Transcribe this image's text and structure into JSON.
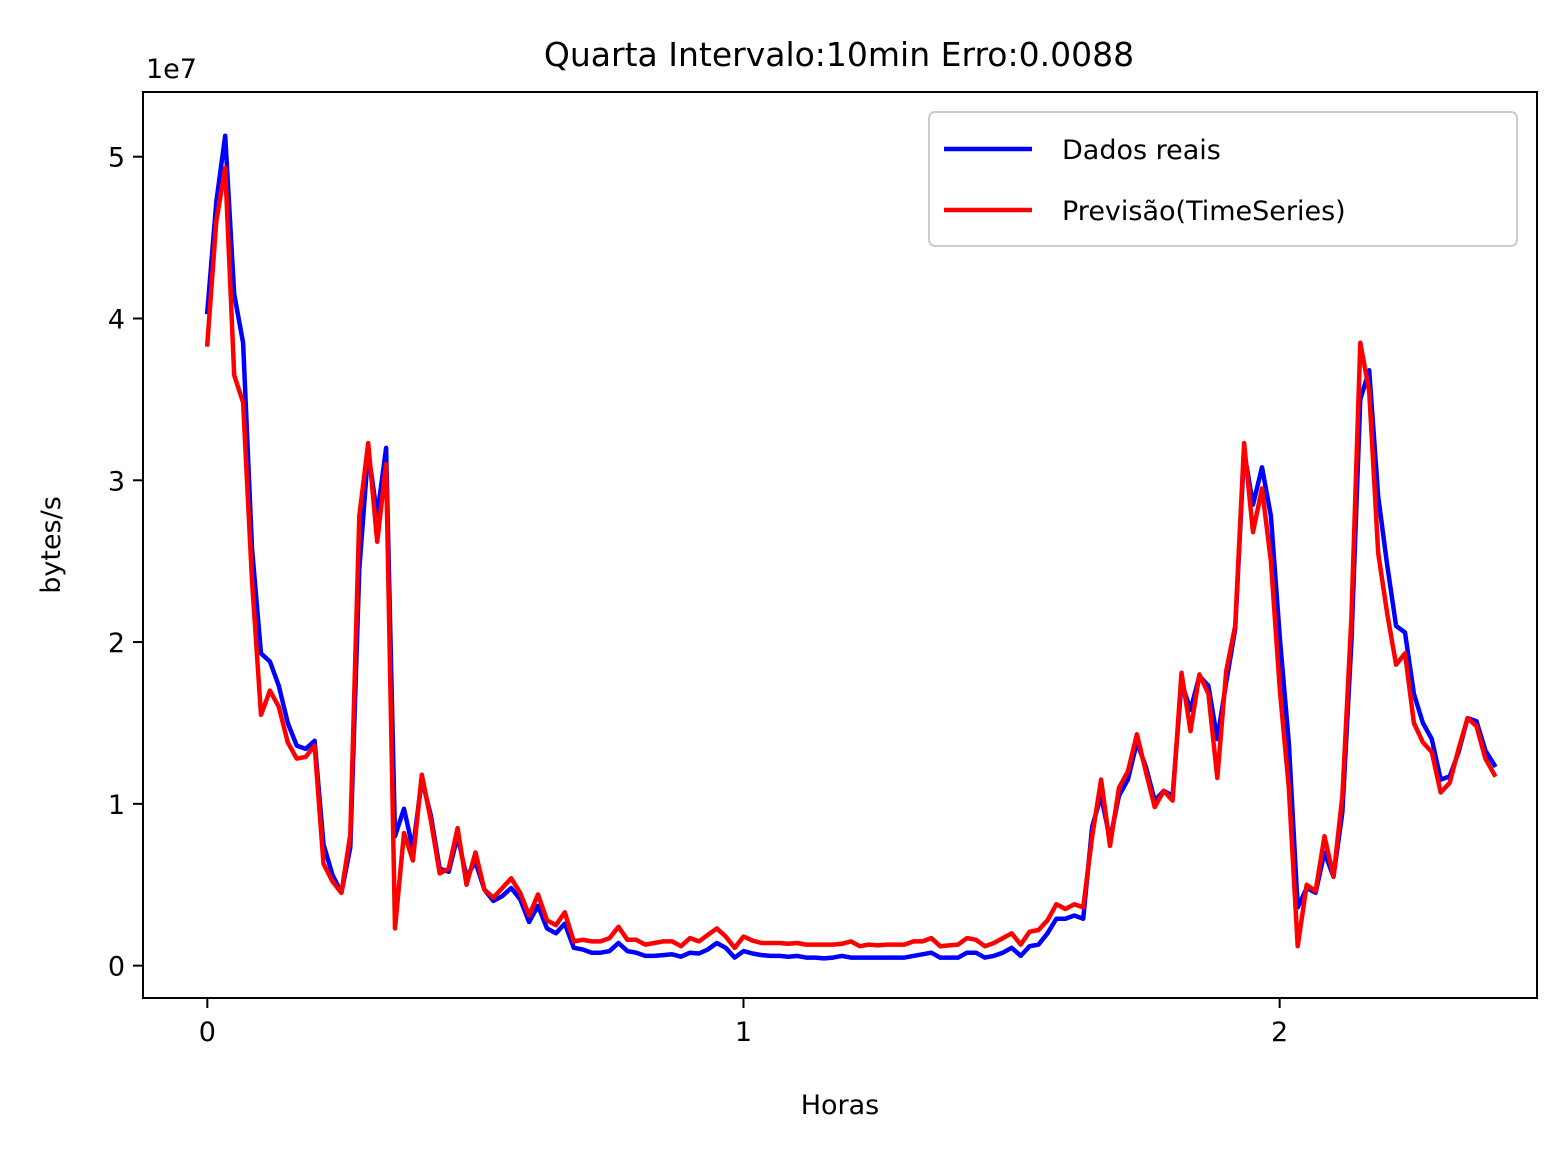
{
  "chart_data": {
    "type": "line",
    "title": "Quarta Intervalo:10min Erro:0.0088",
    "xlabel": "Horas",
    "ylabel": "bytes/s",
    "y_scale_label": "1e7",
    "xlim": [
      -0.12,
      2.48
    ],
    "ylim": [
      -0.2,
      5.4
    ],
    "x_ticks": [
      0,
      1,
      2
    ],
    "x_tick_labels": [
      "0",
      "1",
      "2"
    ],
    "y_ticks": [
      0,
      1,
      2,
      3,
      4,
      5
    ],
    "y_tick_labels": [
      "0",
      "1",
      "2",
      "3",
      "4",
      "5"
    ],
    "grid": false,
    "legend": "top-right",
    "x_step": 0.01667,
    "series": [
      {
        "name": "Dados reais",
        "color": "#0000ff",
        "values": [
          4.04,
          4.72,
          5.13,
          4.15,
          3.85,
          2.58,
          1.93,
          1.88,
          1.73,
          1.5,
          1.36,
          1.34,
          1.39,
          0.75,
          0.56,
          0.45,
          0.73,
          2.45,
          3.18,
          2.78,
          3.2,
          0.8,
          0.97,
          0.72,
          1.15,
          0.93,
          0.6,
          0.58,
          0.8,
          0.55,
          0.64,
          0.47,
          0.4,
          0.43,
          0.48,
          0.41,
          0.27,
          0.37,
          0.23,
          0.2,
          0.26,
          0.11,
          0.1,
          0.08,
          0.08,
          0.09,
          0.14,
          0.09,
          0.08,
          0.06,
          0.06,
          0.065,
          0.07,
          0.055,
          0.08,
          0.075,
          0.1,
          0.14,
          0.11,
          0.05,
          0.09,
          0.075,
          0.065,
          0.06,
          0.06,
          0.055,
          0.06,
          0.05,
          0.05,
          0.045,
          0.05,
          0.06,
          0.05,
          0.05,
          0.05,
          0.05,
          0.05,
          0.05,
          0.05,
          0.06,
          0.07,
          0.08,
          0.05,
          0.05,
          0.05,
          0.08,
          0.08,
          0.05,
          0.06,
          0.08,
          0.11,
          0.06,
          0.12,
          0.13,
          0.2,
          0.29,
          0.29,
          0.31,
          0.29,
          0.86,
          1.05,
          0.78,
          1.05,
          1.15,
          1.38,
          1.23,
          1.02,
          1.08,
          1.05,
          1.75,
          1.58,
          1.79,
          1.73,
          1.4,
          1.75,
          2.08,
          3.18,
          2.85,
          3.08,
          2.78,
          2.02,
          1.38,
          0.36,
          0.48,
          0.45,
          0.7,
          0.55,
          0.95,
          2.0,
          3.5,
          3.68,
          2.9,
          2.48,
          2.1,
          2.06,
          1.68,
          1.5,
          1.4,
          1.15,
          1.17,
          1.32,
          1.53,
          1.51,
          1.33,
          1.24
        ]
      },
      {
        "name": "Previsão(TimeSeries)",
        "color": "#ff0000",
        "values": [
          3.84,
          4.6,
          4.93,
          3.65,
          3.48,
          2.38,
          1.55,
          1.7,
          1.6,
          1.38,
          1.28,
          1.29,
          1.36,
          0.63,
          0.52,
          0.45,
          0.81,
          2.78,
          3.23,
          2.62,
          3.1,
          0.23,
          0.82,
          0.65,
          1.18,
          0.9,
          0.57,
          0.6,
          0.85,
          0.5,
          0.7,
          0.47,
          0.42,
          0.48,
          0.54,
          0.45,
          0.31,
          0.44,
          0.28,
          0.25,
          0.33,
          0.15,
          0.16,
          0.15,
          0.15,
          0.17,
          0.24,
          0.16,
          0.16,
          0.13,
          0.14,
          0.15,
          0.15,
          0.12,
          0.17,
          0.15,
          0.19,
          0.23,
          0.18,
          0.11,
          0.18,
          0.155,
          0.14,
          0.14,
          0.14,
          0.135,
          0.14,
          0.13,
          0.13,
          0.13,
          0.13,
          0.135,
          0.15,
          0.12,
          0.13,
          0.125,
          0.13,
          0.13,
          0.13,
          0.15,
          0.15,
          0.17,
          0.12,
          0.125,
          0.13,
          0.17,
          0.16,
          0.12,
          0.14,
          0.17,
          0.2,
          0.13,
          0.21,
          0.22,
          0.28,
          0.38,
          0.35,
          0.38,
          0.36,
          0.8,
          1.15,
          0.74,
          1.1,
          1.2,
          1.43,
          1.2,
          0.98,
          1.08,
          1.02,
          1.81,
          1.45,
          1.8,
          1.68,
          1.16,
          1.82,
          2.1,
          3.23,
          2.68,
          2.95,
          2.5,
          1.7,
          1.1,
          0.12,
          0.5,
          0.46,
          0.8,
          0.55,
          1.05,
          2.15,
          3.85,
          3.55,
          2.55,
          2.18,
          1.86,
          1.93,
          1.5,
          1.38,
          1.32,
          1.07,
          1.13,
          1.34,
          1.53,
          1.48,
          1.28,
          1.18
        ]
      }
    ]
  }
}
